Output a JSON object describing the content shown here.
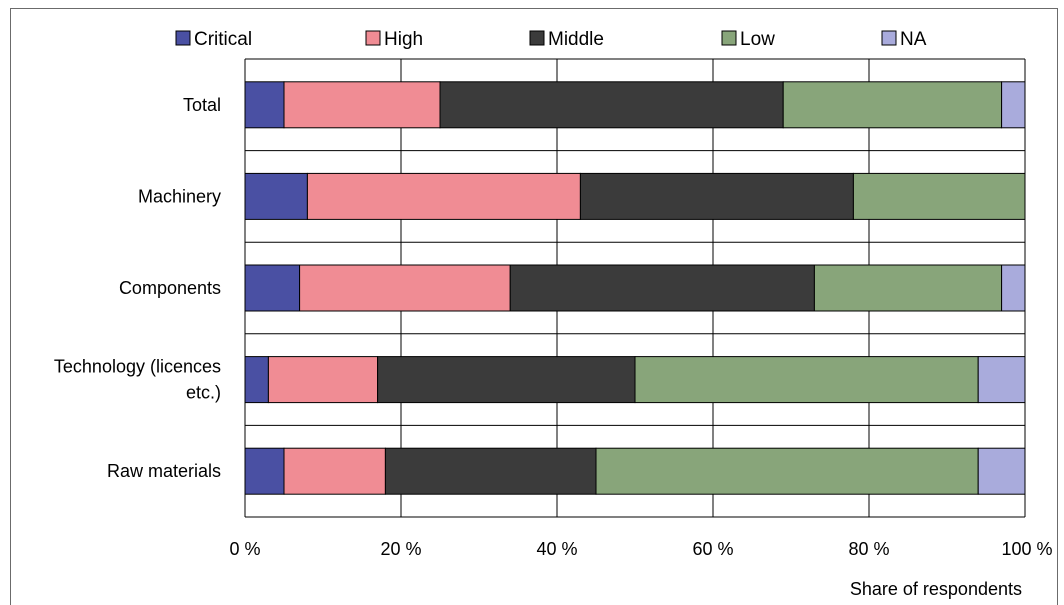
{
  "chart_data": {
    "type": "bar",
    "orientation": "horizontal",
    "stacked": true,
    "categories": [
      "Total",
      "Machinery",
      "Components",
      "Technology (licences etc.)",
      "Raw materials"
    ],
    "category_label_lines": [
      [
        "Total"
      ],
      [
        "Machinery"
      ],
      [
        "Components"
      ],
      [
        "Technology (licences",
        "etc.)"
      ],
      [
        "Raw materials"
      ]
    ],
    "series": [
      {
        "name": "Critical",
        "color": "#4a50a3",
        "values": [
          5,
          8,
          7,
          3,
          5
        ]
      },
      {
        "name": "High",
        "color": "#f08c94",
        "values": [
          20,
          35,
          27,
          14,
          13
        ]
      },
      {
        "name": "Middle",
        "color": "#3b3b3b",
        "values": [
          44,
          35,
          39,
          33,
          27
        ]
      },
      {
        "name": "Low",
        "color": "#88a57a",
        "values": [
          28,
          22,
          24,
          44,
          49
        ]
      },
      {
        "name": "NA",
        "color": "#a9abdc",
        "values": [
          3,
          0,
          3,
          6,
          6
        ]
      }
    ],
    "x_ticks": [
      "0 %",
      "20 %",
      "40 %",
      "60 %",
      "80 %",
      "100 %"
    ],
    "x_tick_values": [
      0,
      20,
      40,
      60,
      80,
      100
    ],
    "xlim": [
      0,
      100
    ],
    "xlabel": "Share of respondents",
    "ylabel": "",
    "title": "",
    "grid": "vertical",
    "legend_position": "top"
  }
}
